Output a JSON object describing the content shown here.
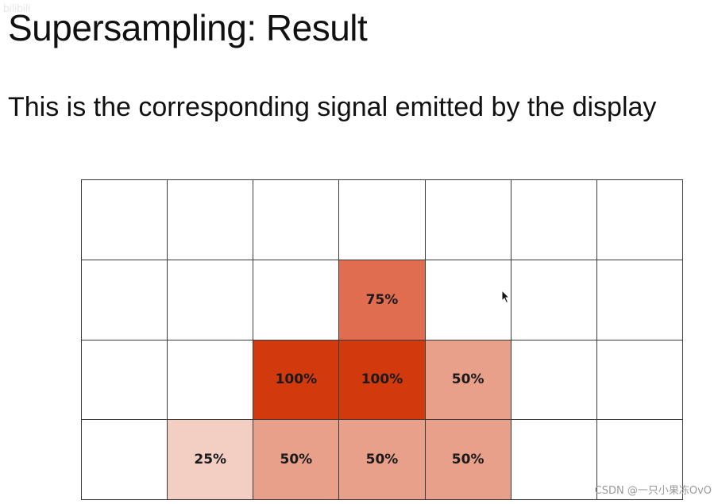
{
  "slide": {
    "title": "Supersampling: Result",
    "subtitle": "This is the corresponding signal emitted by the display"
  },
  "grid": {
    "columns": 7,
    "rows": 4,
    "cells": [
      [
        {
          "label": "",
          "coverage": 0
        },
        {
          "label": "",
          "coverage": 0
        },
        {
          "label": "",
          "coverage": 0
        },
        {
          "label": "",
          "coverage": 0
        },
        {
          "label": "",
          "coverage": 0
        },
        {
          "label": "",
          "coverage": 0
        },
        {
          "label": "",
          "coverage": 0
        }
      ],
      [
        {
          "label": "",
          "coverage": 0
        },
        {
          "label": "",
          "coverage": 0
        },
        {
          "label": "",
          "coverage": 0
        },
        {
          "label": "75%",
          "coverage": 75
        },
        {
          "label": "",
          "coverage": 0
        },
        {
          "label": "",
          "coverage": 0
        },
        {
          "label": "",
          "coverage": 0
        }
      ],
      [
        {
          "label": "",
          "coverage": 0
        },
        {
          "label": "",
          "coverage": 0
        },
        {
          "label": "100%",
          "coverage": 100
        },
        {
          "label": "100%",
          "coverage": 100
        },
        {
          "label": "50%",
          "coverage": 50
        },
        {
          "label": "",
          "coverage": 0
        },
        {
          "label": "",
          "coverage": 0
        }
      ],
      [
        {
          "label": "",
          "coverage": 0
        },
        {
          "label": "25%",
          "coverage": 25
        },
        {
          "label": "50%",
          "coverage": 50
        },
        {
          "label": "50%",
          "coverage": 50
        },
        {
          "label": "50%",
          "coverage": 50
        },
        {
          "label": "",
          "coverage": 0
        },
        {
          "label": "",
          "coverage": 0
        }
      ]
    ],
    "colors": {
      "25": "#f3cfc3",
      "50": "#e9a08a",
      "75": "#e06d4f",
      "100": "#d23a0e",
      "0": "#ffffff"
    }
  },
  "watermark": {
    "text": "CSDN @一只小果冻OvO"
  }
}
